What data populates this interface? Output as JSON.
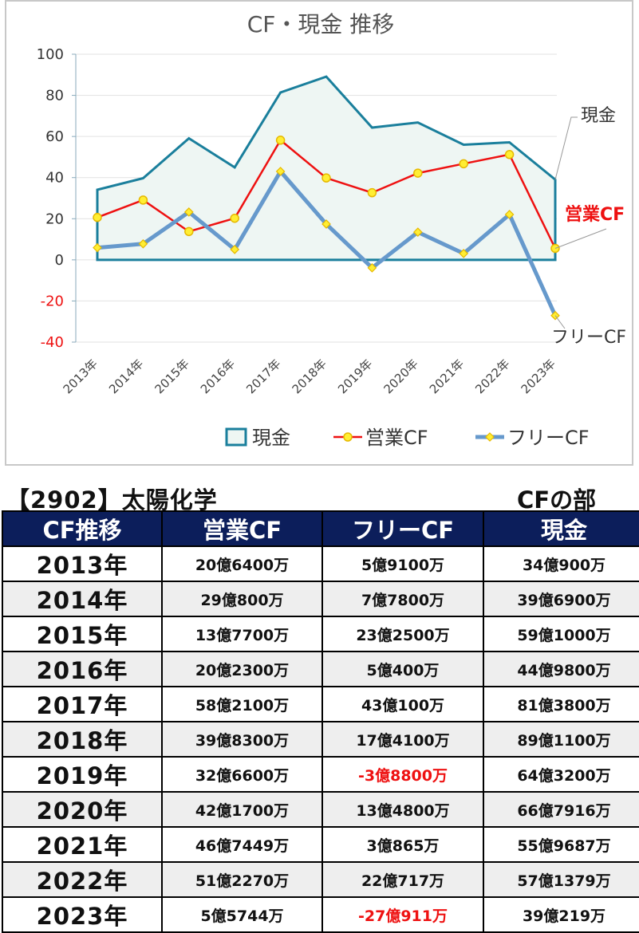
{
  "chart_data": {
    "type": "line",
    "title": "CF・現金 推移",
    "categories": [
      "2013年",
      "2014年",
      "2015年",
      "2016年",
      "2017年",
      "2018年",
      "2019年",
      "2020年",
      "2021年",
      "2022年",
      "2023年"
    ],
    "ylim": [
      -40,
      100
    ],
    "yticks": [
      100,
      80,
      60,
      40,
      20,
      0,
      -20,
      -40
    ],
    "negative_tick_color": "#ee1111",
    "grid": true,
    "legend_position": "bottom",
    "series": [
      {
        "name": "現金",
        "kind": "area",
        "color": "#1a7f9c",
        "fill": "#eef6f3",
        "values": [
          34.09,
          39.69,
          59.1,
          44.98,
          81.38,
          89.11,
          64.32,
          66.79,
          55.97,
          57.14,
          39.02
        ]
      },
      {
        "name": "営業CF",
        "kind": "line",
        "color": "#ee1111",
        "marker": "circle",
        "values": [
          20.64,
          29.08,
          13.77,
          20.23,
          58.21,
          39.83,
          32.66,
          42.17,
          46.74,
          51.23,
          5.57
        ]
      },
      {
        "name": "フリーCF",
        "kind": "line",
        "color": "#6699cc",
        "marker": "diamond",
        "values": [
          5.91,
          7.78,
          23.25,
          5.04,
          43.01,
          17.41,
          -3.88,
          13.48,
          3.09,
          22.07,
          -27.09
        ]
      }
    ],
    "end_labels": [
      {
        "series": "現金",
        "text": "現金",
        "color": "#333333"
      },
      {
        "series": "営業CF",
        "text": "営業CF",
        "color": "#ee1111"
      },
      {
        "series": "フリーCF",
        "text": "フリーCF",
        "color": "#333333"
      }
    ]
  },
  "header": {
    "company": "【2902】太陽化学",
    "section": "CFの部"
  },
  "table": {
    "columns": [
      "CF推移",
      "営業CF",
      "フリーCF",
      "現金"
    ],
    "rows": [
      {
        "year": "2013年",
        "op": "20億6400万",
        "free": "5億9100万",
        "cash": "34億900万"
      },
      {
        "year": "2014年",
        "op": "29億800万",
        "free": "7億7800万",
        "cash": "39億6900万"
      },
      {
        "year": "2015年",
        "op": "13億7700万",
        "free": "23億2500万",
        "cash": "59億1000万"
      },
      {
        "year": "2016年",
        "op": "20億2300万",
        "free": "5億400万",
        "cash": "44億9800万"
      },
      {
        "year": "2017年",
        "op": "58億2100万",
        "free": "43億100万",
        "cash": "81億3800万"
      },
      {
        "year": "2018年",
        "op": "39億8300万",
        "free": "17億4100万",
        "cash": "89億1100万"
      },
      {
        "year": "2019年",
        "op": "32億6600万",
        "free": "-3億8800万",
        "cash": "64億3200万"
      },
      {
        "year": "2020年",
        "op": "42億1700万",
        "free": "13億4800万",
        "cash": "66億7916万"
      },
      {
        "year": "2021年",
        "op": "46億7449万",
        "free": "3億865万",
        "cash": "55億9687万"
      },
      {
        "year": "2022年",
        "op": "51億2270万",
        "free": "22億717万",
        "cash": "57億1379万"
      },
      {
        "year": "2023年",
        "op": "5億5744万",
        "free": "-27億911万",
        "cash": "39億219万"
      }
    ]
  }
}
